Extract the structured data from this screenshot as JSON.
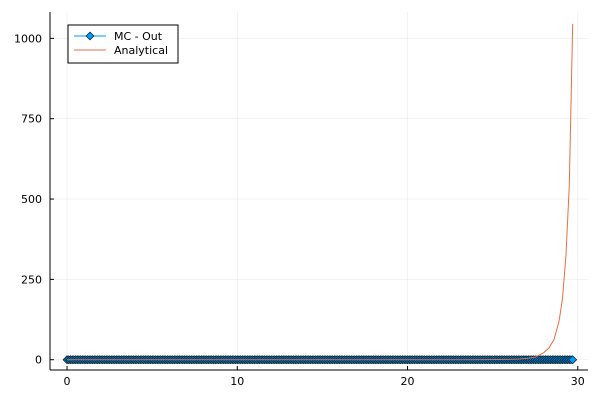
{
  "chart_data": {
    "type": "line",
    "title": "",
    "xlabel": "",
    "ylabel": "",
    "xlim": [
      -1,
      30.6
    ],
    "ylim": [
      -32,
      1082
    ],
    "grid": true,
    "legend_position": "top-left",
    "x_ticks": [
      0,
      10,
      20,
      30
    ],
    "y_ticks": [
      0,
      250,
      500,
      750,
      1000
    ],
    "x_tick_labels": [
      "0",
      "10",
      "20",
      "30"
    ],
    "y_tick_labels": [
      "0",
      "250",
      "500",
      "750",
      "1000"
    ],
    "series": [
      {
        "name": "MC - Out",
        "style": "line+diamond-markers",
        "color": "#009AFA",
        "marker_fill": "#009AFA",
        "marker_stroke": "#000000",
        "x_start": 0,
        "x_end": 29.7,
        "x_step": 0.1,
        "y_constant": 0
      },
      {
        "name": "Analytical",
        "style": "line",
        "color": "#E26F46",
        "x": [
          0,
          5,
          10,
          15,
          20,
          24,
          26,
          26.5,
          27,
          27.5,
          28,
          28.3,
          28.6,
          28.9,
          29.1,
          29.3,
          29.5,
          29.7
        ],
        "y": [
          0,
          0,
          0,
          0,
          0,
          0,
          1,
          2,
          4,
          8,
          22,
          36,
          62,
          120,
          190,
          320,
          540,
          1045
        ]
      }
    ]
  }
}
